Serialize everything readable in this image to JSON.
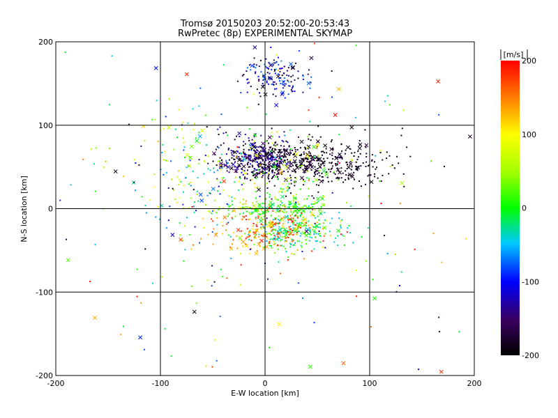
{
  "chart_data": {
    "type": "scatter",
    "title": "Tromsø 20150203 20:52:00-20:53:43",
    "subtitle": "RwPretec (8p) EXPERIMENTAL SKYMAP",
    "xlabel": "E-W location [km]",
    "ylabel": "N-S location [km]",
    "xlim": [
      -200,
      200
    ],
    "ylim": [
      -200,
      200
    ],
    "xticks": [
      "-200",
      "-100",
      "0",
      "100",
      "200"
    ],
    "yticks": [
      "-200",
      "-100",
      "0",
      "100",
      "200"
    ],
    "grid": true,
    "colorbar": {
      "label": "[m/s]",
      "range": [
        -200,
        200
      ],
      "ticks": [
        "-200",
        "-100",
        "0",
        "100",
        "200"
      ]
    },
    "clusters": [
      {
        "cx": -5,
        "cy": 60,
        "sx": 18,
        "sy": 12,
        "n": 380,
        "vmin": -200,
        "vmax": -110
      },
      {
        "cx": 50,
        "cy": 55,
        "sx": 35,
        "sy": 14,
        "n": 380,
        "vmin": -200,
        "vmax": -170
      },
      {
        "cx": 10,
        "cy": 160,
        "sx": 18,
        "sy": 14,
        "n": 150,
        "vmin": -200,
        "vmax": -60
      },
      {
        "cx": 10,
        "cy": 0,
        "sx": 28,
        "sy": 6,
        "n": 160,
        "vmin": -40,
        "vmax": 60
      },
      {
        "cx": 30,
        "cy": -28,
        "sx": 22,
        "sy": 12,
        "n": 230,
        "vmin": -60,
        "vmax": 40
      },
      {
        "cx": 0,
        "cy": -25,
        "sx": 25,
        "sy": 14,
        "n": 200,
        "vmin": 100,
        "vmax": 200
      },
      {
        "cx": -60,
        "cy": 40,
        "sx": 35,
        "sy": 40,
        "n": 160,
        "vmin": -100,
        "vmax": 120
      },
      {
        "cx": 20,
        "cy": 30,
        "sx": 25,
        "sy": 25,
        "n": 120,
        "vmin": -20,
        "vmax": 120
      },
      {
        "cx": 0,
        "cy": 0,
        "sx": 110,
        "sy": 110,
        "n": 260,
        "vmin": -200,
        "vmax": 200
      }
    ],
    "marker_fraction_cross": 0.12,
    "random_seed": 20150203
  }
}
